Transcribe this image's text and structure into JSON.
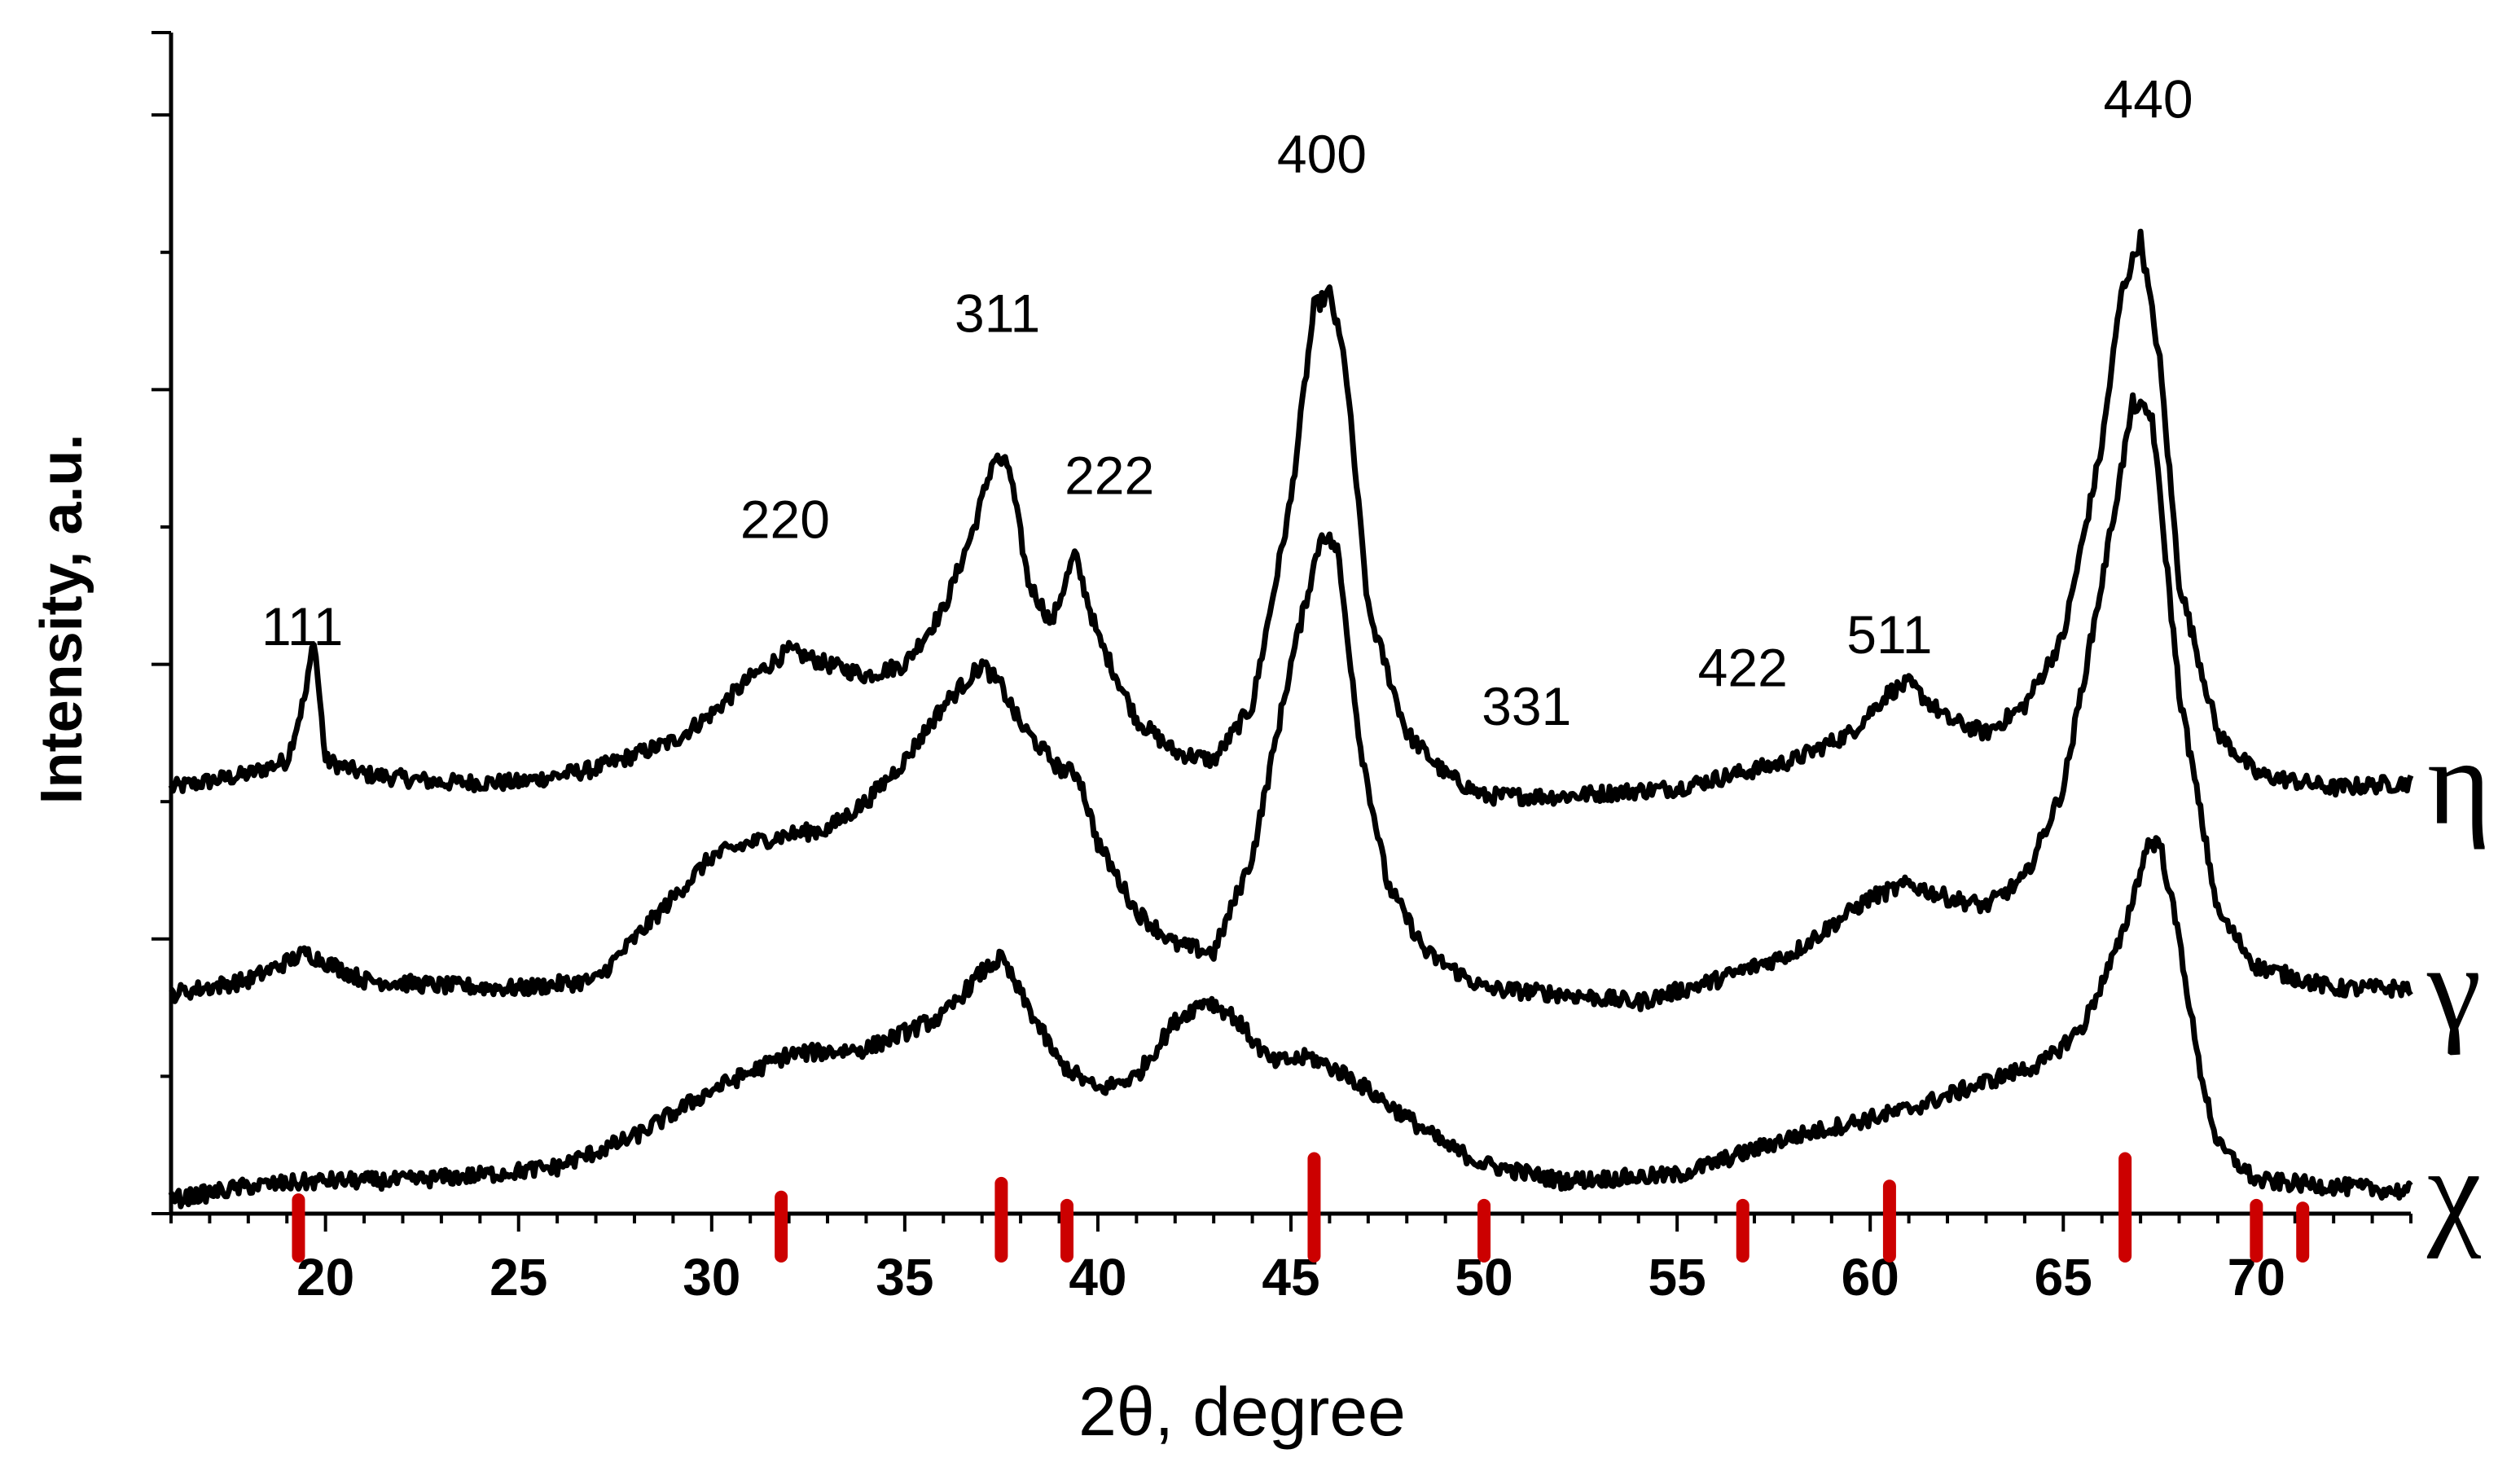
{
  "chart_data": {
    "type": "line",
    "xlabel": "2θ, degree",
    "ylabel": "Intensity, a.u.",
    "xlim": [
      16,
      74
    ],
    "ylim": [
      0,
      4.3
    ],
    "xticks": [
      20,
      25,
      30,
      35,
      40,
      45,
      50,
      55,
      60,
      65,
      70
    ],
    "xtick_labels": [
      "20",
      "25",
      "30",
      "35",
      "40",
      "45",
      "50",
      "55",
      "60",
      "65",
      "70"
    ],
    "y_tick_labels_shown": false,
    "grid": false,
    "legend": "none",
    "colors": {
      "series": "#000000",
      "reference": "#cc0000"
    },
    "series": [
      {
        "name": "η",
        "x": [
          16,
          18,
          19,
          19.5,
          19.7,
          20,
          21,
          23,
          25,
          27,
          29,
          30,
          31,
          32,
          33,
          34,
          35,
          36,
          36.8,
          37.3,
          37.7,
          38.2,
          38.8,
          39.4,
          40,
          41,
          42,
          43,
          44,
          45,
          45.6,
          46,
          46.4,
          47,
          48,
          49,
          50,
          52,
          55,
          58,
          59.5,
          60.5,
          61,
          62,
          63,
          64,
          65,
          66,
          66.5,
          67,
          67.5,
          68,
          69,
          70,
          72,
          74
        ],
        "y": [
          1.55,
          1.6,
          1.65,
          1.9,
          2.1,
          1.65,
          1.6,
          1.57,
          1.57,
          1.62,
          1.72,
          1.82,
          1.95,
          2.05,
          2.0,
          1.96,
          2.0,
          2.2,
          2.5,
          2.75,
          2.72,
          2.3,
          2.15,
          2.4,
          2.1,
          1.8,
          1.68,
          1.65,
          1.85,
          2.6,
          3.3,
          3.35,
          3.1,
          2.2,
          1.75,
          1.6,
          1.52,
          1.52,
          1.55,
          1.65,
          1.75,
          1.9,
          1.93,
          1.8,
          1.75,
          1.85,
          2.1,
          2.8,
          3.35,
          3.55,
          3.1,
          2.3,
          1.75,
          1.6,
          1.55,
          1.57
        ]
      },
      {
        "name": "γ",
        "x": [
          16,
          18,
          19.5,
          21,
          23,
          25,
          27,
          28,
          30,
          31,
          32,
          33,
          34,
          35,
          36,
          37,
          37.5,
          38,
          39,
          39.5,
          40,
          41,
          42,
          43,
          44,
          45,
          45.8,
          46.2,
          46.8,
          47.5,
          48.5,
          50,
          52,
          54,
          56,
          58,
          60,
          61,
          62,
          63,
          64,
          65,
          66,
          66.8,
          67.3,
          68,
          69,
          70,
          72,
          74
        ],
        "y": [
          0.8,
          0.85,
          0.95,
          0.85,
          0.83,
          0.82,
          0.85,
          1.0,
          1.3,
          1.35,
          1.38,
          1.4,
          1.5,
          1.65,
          1.85,
          2.0,
          1.92,
          1.78,
          1.62,
          1.6,
          1.35,
          1.1,
          0.98,
          0.95,
          1.3,
          2.0,
          2.48,
          2.42,
          1.7,
          1.2,
          0.95,
          0.82,
          0.8,
          0.77,
          0.85,
          0.95,
          1.15,
          1.2,
          1.15,
          1.12,
          1.22,
          1.55,
          2.3,
          2.95,
          2.9,
          1.9,
          1.1,
          0.9,
          0.82,
          0.82
        ]
      },
      {
        "name": "χ",
        "x": [
          16,
          18,
          20,
          22,
          24,
          26,
          28,
          30,
          32,
          34,
          36,
          37,
          37.5,
          38,
          39,
          40,
          41,
          42,
          42.8,
          43.5,
          44.5,
          45.5,
          46.5,
          47.5,
          49,
          50,
          52,
          55,
          58,
          61,
          63,
          64.5,
          65.5,
          66.5,
          67.2,
          67.5,
          68,
          68.5,
          69,
          70,
          72,
          74
        ],
        "y": [
          0.05,
          0.1,
          0.12,
          0.12,
          0.14,
          0.17,
          0.28,
          0.45,
          0.58,
          0.6,
          0.72,
          0.88,
          0.93,
          0.8,
          0.55,
          0.45,
          0.5,
          0.7,
          0.78,
          0.72,
          0.55,
          0.57,
          0.5,
          0.4,
          0.25,
          0.18,
          0.12,
          0.14,
          0.28,
          0.38,
          0.48,
          0.55,
          0.68,
          1.0,
          1.35,
          1.35,
          1.0,
          0.55,
          0.25,
          0.12,
          0.1,
          0.08
        ]
      }
    ],
    "reference_lines": {
      "x": [
        19.3,
        31.8,
        37.5,
        39.2,
        45.6,
        50.0,
        56.7,
        60.5,
        66.6,
        70.0,
        71.2
      ],
      "height": [
        0.05,
        0.06,
        0.11,
        0.03,
        0.2,
        0.03,
        0.03,
        0.1,
        0.2,
        0.03,
        0.02
      ]
    },
    "annotations": [
      {
        "text": "111",
        "x": 19.4,
        "y": 2.07
      },
      {
        "text": "220",
        "x": 31.9,
        "y": 2.46
      },
      {
        "text": "311",
        "x": 37.4,
        "y": 3.21
      },
      {
        "text": "222",
        "x": 40.3,
        "y": 2.62
      },
      {
        "text": "400",
        "x": 45.8,
        "y": 3.79
      },
      {
        "text": "331",
        "x": 51.1,
        "y": 1.78
      },
      {
        "text": "422",
        "x": 56.7,
        "y": 1.92
      },
      {
        "text": "511",
        "x": 60.5,
        "y": 2.04
      },
      {
        "text": "440",
        "x": 67.2,
        "y": 3.99
      }
    ]
  }
}
